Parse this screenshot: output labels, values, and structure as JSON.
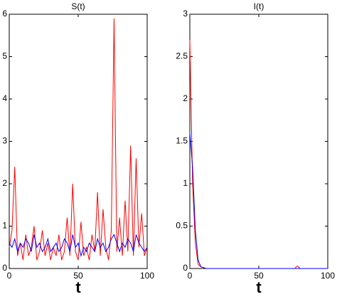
{
  "chart_data": [
    {
      "type": "line",
      "title": "S(t)",
      "x_label": "t",
      "x": [
        0,
        2,
        4,
        6,
        8,
        10,
        12,
        14,
        16,
        18,
        20,
        22,
        24,
        26,
        28,
        30,
        32,
        34,
        36,
        38,
        40,
        42,
        44,
        46,
        48,
        50,
        52,
        54,
        56,
        58,
        60,
        62,
        64,
        66,
        68,
        70,
        72,
        74,
        76,
        78,
        80,
        82,
        84,
        86,
        88,
        90,
        92,
        94,
        96,
        98,
        100
      ],
      "series": [
        {
          "color": "#ff0000",
          "values": [
            0.5,
            0.9,
            2.4,
            0.3,
            0.6,
            0.2,
            0.8,
            0.3,
            0.5,
            1.0,
            0.2,
            0.4,
            0.9,
            0.3,
            0.6,
            0.2,
            0.5,
            0.3,
            0.8,
            0.2,
            0.4,
            1.2,
            0.3,
            2.0,
            0.4,
            0.2,
            1.1,
            0.3,
            0.5,
            0.2,
            0.8,
            0.4,
            1.8,
            0.3,
            1.4,
            0.5,
            0.2,
            0.9,
            5.9,
            0.4,
            1.2,
            0.3,
            1.6,
            0.4,
            2.9,
            0.3,
            2.6,
            0.5,
            1.3,
            0.3,
            0.5
          ]
        },
        {
          "color": "#0000ff",
          "values": [
            0.6,
            0.5,
            0.7,
            0.4,
            0.6,
            0.5,
            0.7,
            0.6,
            0.4,
            0.8,
            0.5,
            0.6,
            0.4,
            0.5,
            0.7,
            0.4,
            0.5,
            0.6,
            0.4,
            0.5,
            0.7,
            0.6,
            0.4,
            0.8,
            0.5,
            0.6,
            0.3,
            0.5,
            0.4,
            0.6,
            0.5,
            0.4,
            0.7,
            0.5,
            0.6,
            0.4,
            0.5,
            0.7,
            0.8,
            0.6,
            0.4,
            0.6,
            0.5,
            0.7,
            0.6,
            0.4,
            0.8,
            0.6,
            0.5,
            0.4,
            0.5
          ]
        }
      ],
      "xlim": [
        0,
        100
      ],
      "xticks": [
        0,
        50,
        100
      ],
      "ylim": [
        0,
        6
      ],
      "yticks": [
        0,
        1,
        2,
        3,
        4,
        5,
        6
      ]
    },
    {
      "type": "line",
      "title": "I(t)",
      "x_label": "t",
      "x": [
        0,
        2,
        4,
        6,
        8,
        10,
        12,
        14,
        16,
        18,
        20,
        22,
        24,
        26,
        28,
        30,
        32,
        34,
        36,
        38,
        40,
        42,
        44,
        46,
        48,
        50,
        52,
        54,
        56,
        58,
        60,
        62,
        64,
        66,
        68,
        70,
        72,
        74,
        76,
        78,
        80,
        82,
        84,
        86,
        88,
        90,
        92,
        94,
        96,
        98,
        100
      ],
      "series": [
        {
          "color": "#ff0000",
          "values": [
            2.7,
            1.0,
            0.3,
            0.05,
            0.02,
            0.01,
            0,
            0,
            0,
            0,
            0,
            0,
            0,
            0,
            0,
            0,
            0,
            0,
            0,
            0,
            0,
            0,
            0,
            0,
            0,
            0,
            0,
            0,
            0,
            0,
            0,
            0,
            0,
            0,
            0,
            0,
            0,
            0,
            0,
            0.03,
            0,
            0,
            0,
            0,
            0,
            0,
            0,
            0,
            0,
            0,
            0
          ]
        },
        {
          "color": "#0000ff",
          "values": [
            1.6,
            1.2,
            0.45,
            0.1,
            0.02,
            0.01,
            0,
            0,
            0,
            0,
            0,
            0,
            0,
            0,
            0,
            0,
            0,
            0,
            0,
            0,
            0,
            0,
            0,
            0,
            0,
            0,
            0,
            0,
            0,
            0,
            0,
            0,
            0,
            0,
            0,
            0,
            0,
            0,
            0,
            0,
            0,
            0,
            0,
            0,
            0,
            0,
            0,
            0,
            0,
            0,
            0
          ]
        }
      ],
      "xlim": [
        0,
        100
      ],
      "xticks": [
        0,
        50,
        100
      ],
      "ylim": [
        0,
        3
      ],
      "yticks": [
        0,
        0.5,
        1,
        1.5,
        2,
        2.5,
        3
      ]
    }
  ]
}
